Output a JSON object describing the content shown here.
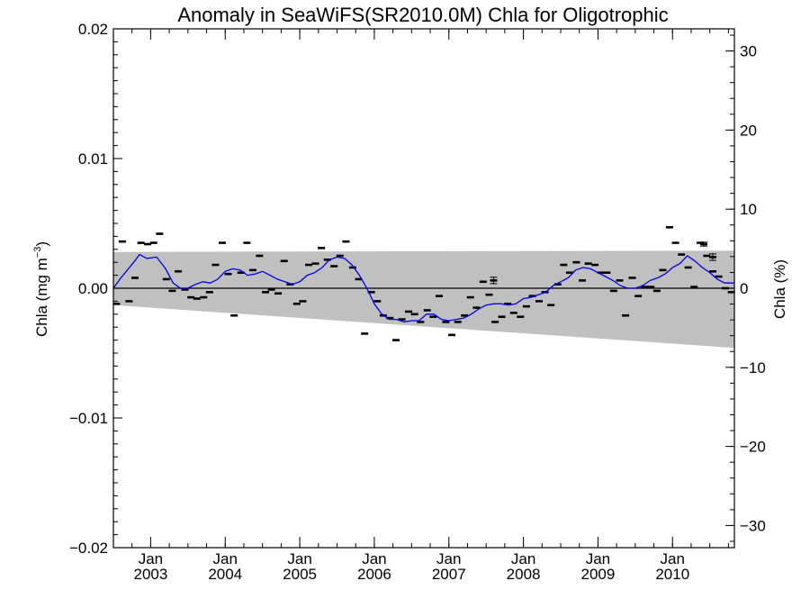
{
  "chart_data": {
    "type": "line",
    "title": "Anomaly in SeaWiFS(SR2010.0M) Chla for Oligotrophic",
    "ylabel_left": "Chla (mg m",
    "ylabel_left_superscript": "−3",
    "ylabel_left_close": ")",
    "ylabel_right": "Chla (%)",
    "xlim": [
      2002.5,
      2010.83
    ],
    "ylim": [
      -0.02,
      0.02
    ],
    "y2lim": [
      -32.8,
      32.8
    ],
    "x_ticks": [
      {
        "x": 2003.0,
        "top": "Jan",
        "bottom": "2003"
      },
      {
        "x": 2004.0,
        "top": "Jan",
        "bottom": "2004"
      },
      {
        "x": 2005.0,
        "top": "Jan",
        "bottom": "2005"
      },
      {
        "x": 2006.0,
        "top": "Jan",
        "bottom": "2006"
      },
      {
        "x": 2007.0,
        "top": "Jan",
        "bottom": "2007"
      },
      {
        "x": 2008.0,
        "top": "Jan",
        "bottom": "2008"
      },
      {
        "x": 2009.0,
        "top": "Jan",
        "bottom": "2009"
      },
      {
        "x": 2010.0,
        "top": "Jan",
        "bottom": "2010"
      }
    ],
    "y_ticks": [
      {
        "v": 0.02,
        "label": "0.02"
      },
      {
        "v": 0.01,
        "label": "0.01"
      },
      {
        "v": 0.0,
        "label": "0.00"
      },
      {
        "v": -0.01,
        "label": "−0.01"
      },
      {
        "v": -0.02,
        "label": "−0.02"
      }
    ],
    "y2_ticks": [
      {
        "v": 30,
        "label": "30"
      },
      {
        "v": 20,
        "label": "20"
      },
      {
        "v": 10,
        "label": "10"
      },
      {
        "v": 0,
        "label": "0"
      },
      {
        "v": -10,
        "label": "−10"
      },
      {
        "v": -20,
        "label": "−20"
      },
      {
        "v": -30,
        "label": "−30"
      }
    ],
    "envelope": {
      "upper": [
        [
          2002.5,
          0.0028
        ],
        [
          2010.83,
          0.0029
        ]
      ],
      "lower": [
        [
          2002.5,
          -0.0013
        ],
        [
          2010.83,
          -0.0046
        ]
      ],
      "color": "#c0c0c0"
    },
    "zero_line": 0.0,
    "series": [
      {
        "kind": "monthly",
        "color": "#000000",
        "points": [
          [
            2002.54,
            -0.0012
          ],
          [
            2002.62,
            0.0036
          ],
          [
            2002.71,
            -0.001
          ],
          [
            2002.79,
            0.0008
          ],
          [
            2002.87,
            0.0035
          ],
          [
            2002.96,
            0.0034
          ],
          [
            2003.04,
            0.0035
          ],
          [
            2003.12,
            0.0042
          ],
          [
            2003.21,
            0.0007
          ],
          [
            2003.29,
            -0.0002
          ],
          [
            2003.37,
            0.0013
          ],
          [
            2003.46,
            -0.0001
          ],
          [
            2003.54,
            -0.0007
          ],
          [
            2003.62,
            -0.0008
          ],
          [
            2003.71,
            -0.0007
          ],
          [
            2003.79,
            -0.0003
          ],
          [
            2003.87,
            0.0018
          ],
          [
            2003.96,
            0.0035
          ],
          [
            2004.04,
            0.0011
          ],
          [
            2004.12,
            -0.0021
          ],
          [
            2004.21,
            0.0012
          ],
          [
            2004.29,
            0.0035
          ],
          [
            2004.37,
            0.0014
          ],
          [
            2004.46,
            0.0025
          ],
          [
            2004.54,
            -0.0003
          ],
          [
            2004.62,
            -0.0001
          ],
          [
            2004.71,
            -0.0004
          ],
          [
            2004.79,
            0.0021
          ],
          [
            2004.87,
            0.0003
          ],
          [
            2004.96,
            -0.0012
          ],
          [
            2005.04,
            -0.001
          ],
          [
            2005.12,
            0.0018
          ],
          [
            2005.21,
            0.0019
          ],
          [
            2005.29,
            0.0031
          ],
          [
            2005.37,
            0.0022
          ],
          [
            2005.46,
            0.0017
          ],
          [
            2005.54,
            0.0025
          ],
          [
            2005.62,
            0.0036
          ],
          [
            2005.71,
            0.0016
          ],
          [
            2005.79,
            0.0007
          ],
          [
            2005.87,
            -0.0035
          ],
          [
            2005.96,
            -0.0003
          ],
          [
            2006.04,
            -0.001
          ],
          [
            2006.12,
            -0.0021
          ],
          [
            2006.21,
            -0.0023
          ],
          [
            2006.29,
            -0.004
          ],
          [
            2006.37,
            -0.0024
          ],
          [
            2006.46,
            -0.0018
          ],
          [
            2006.54,
            -0.002
          ],
          [
            2006.62,
            -0.0026
          ],
          [
            2006.71,
            -0.0017
          ],
          [
            2006.79,
            -0.0022
          ],
          [
            2006.87,
            -0.0006
          ],
          [
            2006.96,
            -0.0026
          ],
          [
            2007.04,
            -0.0036
          ],
          [
            2007.12,
            -0.0026
          ],
          [
            2007.21,
            -0.0021
          ],
          [
            2007.29,
            -0.0007
          ],
          [
            2007.37,
            -0.0015
          ],
          [
            2007.46,
            0.0005
          ],
          [
            2007.54,
            -0.0005
          ],
          [
            2007.62,
            -0.0026
          ],
          [
            2007.71,
            -0.0022
          ],
          [
            2007.79,
            -0.0012
          ],
          [
            2007.87,
            -0.0019
          ],
          [
            2007.96,
            -0.0022
          ],
          [
            2008.04,
            -0.0014
          ],
          [
            2008.12,
            -0.0006
          ],
          [
            2008.21,
            -0.001
          ],
          [
            2008.29,
            -0.0003
          ],
          [
            2008.37,
            -0.0013
          ],
          [
            2008.46,
            0.0003
          ],
          [
            2008.54,
            0.0018
          ],
          [
            2008.62,
            0.0012
          ],
          [
            2008.71,
            0.002
          ],
          [
            2008.79,
            0.0006
          ],
          [
            2008.87,
            0.0019
          ],
          [
            2008.96,
            0.0018
          ],
          [
            2009.04,
            0.0012
          ],
          [
            2009.12,
            0.0012
          ],
          [
            2009.21,
            -0.0002
          ],
          [
            2009.29,
            0.0006
          ],
          [
            2009.37,
            -0.0021
          ],
          [
            2009.46,
            0.0008
          ],
          [
            2009.54,
            -0.0006
          ],
          [
            2009.62,
            0.0001
          ],
          [
            2009.71,
            0.0001
          ],
          [
            2009.79,
            -0.0002
          ],
          [
            2009.87,
            0.0014
          ],
          [
            2009.96,
            0.0047
          ],
          [
            2010.04,
            0.0035
          ],
          [
            2010.12,
            0.0026
          ],
          [
            2010.21,
            0.0016
          ],
          [
            2010.29,
            0.0001
          ],
          [
            2010.37,
            0.0035
          ],
          [
            2010.46,
            0.0025
          ],
          [
            2010.54,
            0.0013
          ],
          [
            2010.62,
            0.0009
          ],
          [
            2010.71,
            0.0
          ],
          [
            2010.79,
            -0.0003
          ]
        ]
      },
      {
        "kind": "running_mean",
        "color": "#0000ee",
        "points": [
          [
            2002.5,
            0.0
          ],
          [
            2002.6,
            0.0008
          ],
          [
            2002.7,
            0.0015
          ],
          [
            2002.8,
            0.0022
          ],
          [
            2002.85,
            0.0026
          ],
          [
            2002.95,
            0.0023
          ],
          [
            2003.08,
            0.0024
          ],
          [
            2003.2,
            0.0015
          ],
          [
            2003.3,
            0.0004
          ],
          [
            2003.4,
            0.0
          ],
          [
            2003.5,
            0.0
          ],
          [
            2003.6,
            0.0003
          ],
          [
            2003.7,
            0.0005
          ],
          [
            2003.8,
            0.0004
          ],
          [
            2003.9,
            0.0007
          ],
          [
            2004.0,
            0.0013
          ],
          [
            2004.1,
            0.0015
          ],
          [
            2004.2,
            0.0014
          ],
          [
            2004.3,
            0.001
          ],
          [
            2004.4,
            0.0011
          ],
          [
            2004.5,
            0.0013
          ],
          [
            2004.6,
            0.001
          ],
          [
            2004.7,
            0.0007
          ],
          [
            2004.8,
            0.0005
          ],
          [
            2004.9,
            0.0003
          ],
          [
            2005.0,
            0.0005
          ],
          [
            2005.1,
            0.001
          ],
          [
            2005.2,
            0.0012
          ],
          [
            2005.3,
            0.0016
          ],
          [
            2005.4,
            0.0022
          ],
          [
            2005.5,
            0.0024
          ],
          [
            2005.6,
            0.0023
          ],
          [
            2005.7,
            0.0018
          ],
          [
            2005.8,
            0.001
          ],
          [
            2005.9,
            0.0
          ],
          [
            2006.0,
            -0.0012
          ],
          [
            2006.1,
            -0.002
          ],
          [
            2006.2,
            -0.0024
          ],
          [
            2006.3,
            -0.0024
          ],
          [
            2006.4,
            -0.0026
          ],
          [
            2006.5,
            -0.0025
          ],
          [
            2006.6,
            -0.0025
          ],
          [
            2006.7,
            -0.002
          ],
          [
            2006.8,
            -0.002
          ],
          [
            2006.9,
            -0.0024
          ],
          [
            2007.0,
            -0.0025
          ],
          [
            2007.1,
            -0.0024
          ],
          [
            2007.2,
            -0.0023
          ],
          [
            2007.3,
            -0.002
          ],
          [
            2007.4,
            -0.0016
          ],
          [
            2007.5,
            -0.0013
          ],
          [
            2007.6,
            -0.0012
          ],
          [
            2007.7,
            -0.0012
          ],
          [
            2007.8,
            -0.0013
          ],
          [
            2007.9,
            -0.0012
          ],
          [
            2008.0,
            -0.0008
          ],
          [
            2008.1,
            -0.0007
          ],
          [
            2008.2,
            -0.0005
          ],
          [
            2008.3,
            -0.0003
          ],
          [
            2008.4,
            0.0002
          ],
          [
            2008.5,
            0.0005
          ],
          [
            2008.6,
            0.0008
          ],
          [
            2008.7,
            0.0014
          ],
          [
            2008.8,
            0.0016
          ],
          [
            2008.9,
            0.0015
          ],
          [
            2009.0,
            0.0012
          ],
          [
            2009.1,
            0.0009
          ],
          [
            2009.2,
            0.0006
          ],
          [
            2009.3,
            0.0002
          ],
          [
            2009.4,
            0.0
          ],
          [
            2009.5,
            0.0
          ],
          [
            2009.6,
            0.0002
          ],
          [
            2009.7,
            0.0006
          ],
          [
            2009.8,
            0.0008
          ],
          [
            2009.9,
            0.0011
          ],
          [
            2010.0,
            0.0016
          ],
          [
            2010.1,
            0.0019
          ],
          [
            2010.2,
            0.0025
          ],
          [
            2010.3,
            0.0021
          ],
          [
            2010.4,
            0.0016
          ],
          [
            2010.5,
            0.0012
          ],
          [
            2010.6,
            0.0007
          ],
          [
            2010.7,
            0.0004
          ],
          [
            2010.83,
            0.0004
          ]
        ]
      }
    ],
    "error_bars": [
      {
        "x": 2007.6,
        "y": 0.0006,
        "err": 0.00025
      },
      {
        "x": 2010.42,
        "y": 0.0034,
        "err": 0.00015
      },
      {
        "x": 2010.54,
        "y": 0.0024,
        "err": 0.00025
      }
    ],
    "grid": false,
    "legend": "none"
  }
}
